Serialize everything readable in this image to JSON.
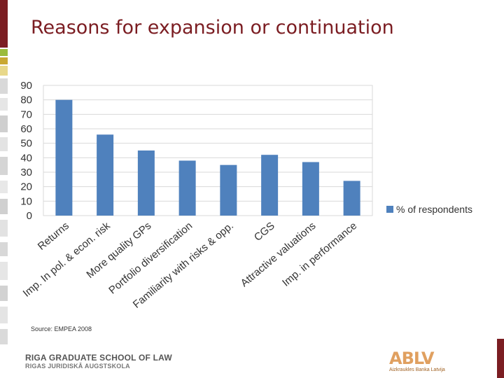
{
  "slide": {
    "title": "Reasons for expansion or continuation",
    "source": "Source: EMPEA 2008",
    "footer_line1": "RIGA GRADUATE SCHOOL OF LAW",
    "footer_line2": "RIGAS JURIDISKĀ AUGSTSKOLA",
    "logo_mark": "ABLV",
    "logo_sub": "Aizkraukles Banka Latvija",
    "colors": {
      "title": "#7b1d22",
      "bar": "#4f81bd",
      "accent": "#7b1d22",
      "logo": "#e0a060"
    }
  },
  "chart_data": {
    "type": "bar",
    "categories": [
      "Returns",
      "Imp. In pol. & econ. risk",
      "More quality GPs",
      "Portfolio diversification",
      "Familiarity with risks & opp.",
      "CGS",
      "Attractive valuations",
      "Imp. in performance"
    ],
    "series": [
      {
        "name": "% of respondents",
        "values": [
          80,
          56,
          45,
          38,
          35,
          42,
          37,
          24
        ]
      }
    ],
    "ylim": [
      0,
      90
    ],
    "yticks": [
      "0",
      "10",
      "20",
      "30",
      "40",
      "50",
      "60",
      "70",
      "80",
      "90"
    ],
    "grid": true,
    "legend": "right"
  }
}
